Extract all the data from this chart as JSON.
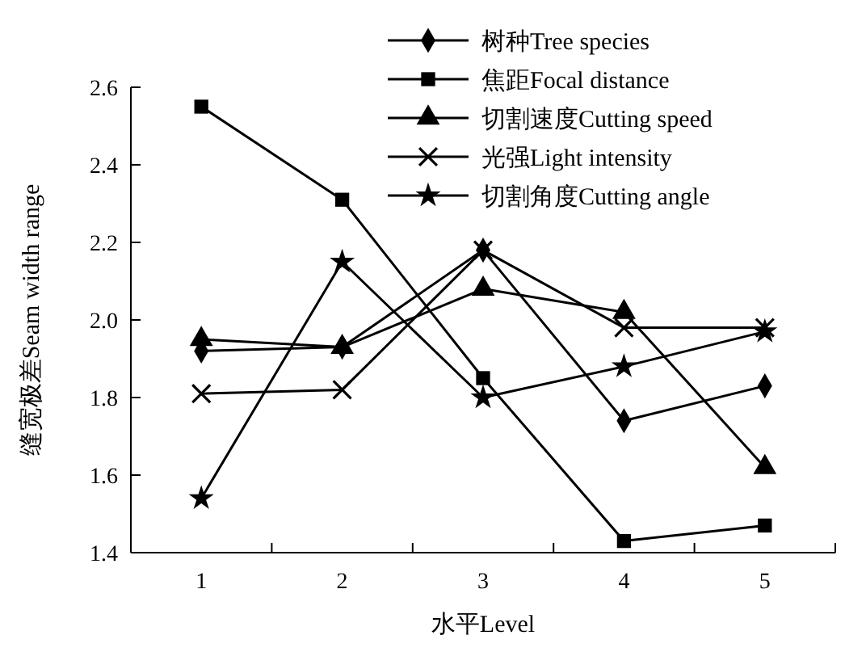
{
  "chart_data": {
    "type": "line",
    "xlabel": "水平Level",
    "ylabel": "缝宽极差Seam width range",
    "categories": [
      "1",
      "2",
      "3",
      "4",
      "5"
    ],
    "ylim": [
      1.4,
      2.6
    ],
    "yticks": [
      {
        "value": 1.4,
        "label": "1.4"
      },
      {
        "value": 1.6,
        "label": "1.6"
      },
      {
        "value": 1.8,
        "label": "1.8"
      },
      {
        "value": 2.0,
        "label": "2.0"
      },
      {
        "value": 2.2,
        "label": "2.2"
      },
      {
        "value": 2.4,
        "label": "2.4"
      },
      {
        "value": 2.6,
        "label": "2.6"
      }
    ],
    "grid": false,
    "legend": "top right",
    "line_style": "solid",
    "series": [
      {
        "name": "树种Tree species",
        "color": "#000000",
        "marker": "diamond",
        "values": [
          1.92,
          1.93,
          2.18,
          1.74,
          1.83
        ]
      },
      {
        "name": "焦距Focal distance",
        "color": "#000000",
        "marker": "square",
        "values": [
          2.55,
          2.31,
          1.85,
          1.43,
          1.47
        ]
      },
      {
        "name": "切割速度Cutting speed",
        "color": "#000000",
        "marker": "triangle",
        "values": [
          1.95,
          1.93,
          2.08,
          2.02,
          1.62
        ]
      },
      {
        "name": "光强Light intensity",
        "color": "#000000",
        "marker": "cross",
        "values": [
          1.81,
          1.82,
          2.18,
          1.98,
          1.98
        ]
      },
      {
        "name": "切割角度Cutting angle",
        "color": "#000000",
        "marker": "star",
        "values": [
          1.54,
          2.15,
          1.8,
          1.88,
          1.97
        ]
      }
    ]
  }
}
